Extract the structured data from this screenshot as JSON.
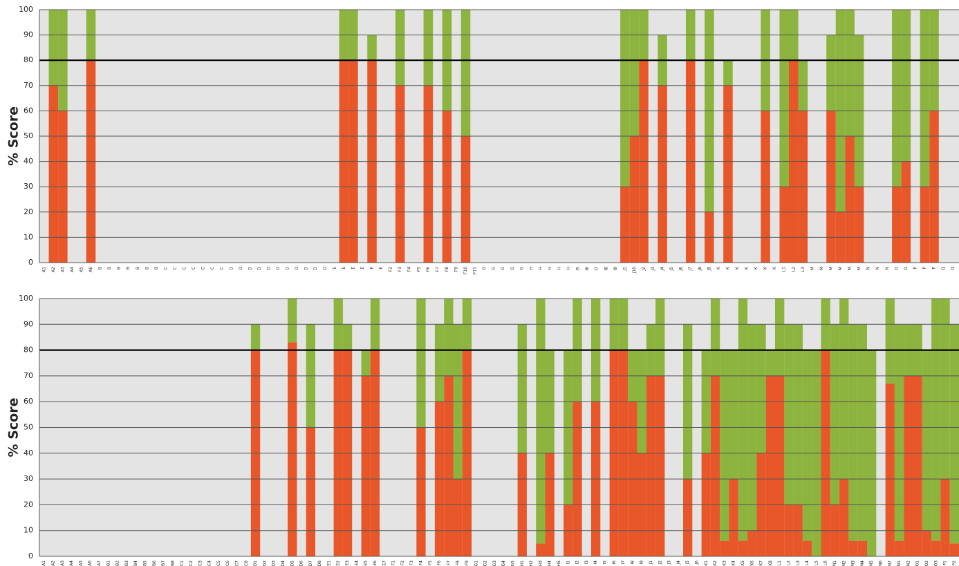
{
  "chart_data": [
    {
      "type": "bar",
      "stacked": true,
      "ylabel": "% Score",
      "ylim": [
        0,
        100
      ],
      "yticks": [
        0,
        10,
        20,
        30,
        40,
        50,
        60,
        70,
        80,
        90,
        100
      ],
      "grid": true,
      "hline": 80,
      "categories": [
        "A1",
        "A2",
        "A3",
        "A4",
        "A5",
        "A6",
        "B",
        "B",
        "B",
        "B",
        "B",
        "B",
        "B",
        "C",
        "C",
        "C",
        "C",
        "C",
        "C",
        "C",
        "D",
        "D",
        "D",
        "D",
        "D",
        "D",
        "D",
        "D",
        "D",
        "D",
        "D",
        "E",
        "E",
        "E",
        "E",
        "E",
        "E",
        "F2",
        "F3",
        "F4",
        "F5",
        "F6",
        "F7",
        "F8",
        "F9",
        "F10",
        "F11",
        "G",
        "G",
        "G",
        "G",
        "G",
        "H",
        "H",
        "H",
        "H",
        "H",
        "I5",
        "I6",
        "I7",
        "I8",
        "I9",
        "J1",
        "J10",
        "J2",
        "J3",
        "J4",
        "J5",
        "J6",
        "J7",
        "J8",
        "J9",
        "K",
        "K",
        "K",
        "K",
        "K",
        "K",
        "K",
        "L1",
        "L2",
        "L3",
        "M",
        "M",
        "M",
        "M",
        "M",
        "M",
        "N",
        "N",
        "N",
        "O",
        "O",
        "P",
        "P",
        "P",
        "Q",
        "Q"
      ],
      "series": [
        {
          "color": "#e8572a",
          "values": [
            null,
            70,
            60,
            null,
            null,
            80,
            null,
            null,
            null,
            null,
            null,
            null,
            null,
            null,
            null,
            null,
            null,
            null,
            null,
            null,
            null,
            null,
            null,
            null,
            null,
            null,
            null,
            null,
            null,
            null,
            null,
            null,
            80,
            80,
            null,
            80,
            null,
            null,
            70,
            null,
            null,
            70,
            null,
            60,
            null,
            50,
            null,
            null,
            null,
            null,
            null,
            null,
            null,
            null,
            null,
            null,
            null,
            null,
            null,
            null,
            null,
            null,
            30,
            50,
            80,
            null,
            70,
            null,
            null,
            80,
            null,
            20,
            null,
            70,
            null,
            null,
            null,
            60,
            null,
            30,
            80,
            60,
            null,
            null,
            60,
            20,
            50,
            30,
            null,
            null,
            null,
            30,
            40,
            null,
            30,
            60,
            null,
            null
          ]
        },
        {
          "color": "#8db43e",
          "values": [
            null,
            30,
            40,
            null,
            null,
            20,
            null,
            null,
            null,
            null,
            null,
            null,
            null,
            null,
            null,
            null,
            null,
            null,
            null,
            null,
            null,
            null,
            null,
            null,
            null,
            null,
            null,
            null,
            null,
            null,
            null,
            null,
            20,
            20,
            null,
            10,
            null,
            null,
            30,
            null,
            null,
            30,
            null,
            40,
            null,
            50,
            null,
            null,
            null,
            null,
            null,
            null,
            null,
            null,
            null,
            null,
            null,
            null,
            null,
            null,
            null,
            null,
            70,
            50,
            20,
            null,
            20,
            null,
            null,
            20,
            null,
            80,
            null,
            10,
            null,
            null,
            null,
            40,
            null,
            70,
            20,
            20,
            null,
            null,
            30,
            80,
            50,
            60,
            null,
            null,
            null,
            70,
            60,
            null,
            70,
            40,
            null,
            null
          ]
        }
      ]
    },
    {
      "type": "bar",
      "stacked": true,
      "ylabel": "% Score",
      "ylim": [
        0,
        100
      ],
      "yticks": [
        0,
        10,
        20,
        30,
        40,
        50,
        60,
        70,
        80,
        90,
        100
      ],
      "grid": true,
      "hline": 80,
      "categories": [
        "A1",
        "A2",
        "A3",
        "A4",
        "A5",
        "A6",
        "A7",
        "B1",
        "B2",
        "B3",
        "B4",
        "B5",
        "B6",
        "B7",
        "B8",
        "C1",
        "C2",
        "C3",
        "C4",
        "C5",
        "C6",
        "C7",
        "C8",
        "D1",
        "D2",
        "D3",
        "D4",
        "D5",
        "D6",
        "D7",
        "D8",
        "E1",
        "E2",
        "E3",
        "E4",
        "E5",
        "E6",
        "E7",
        "F1",
        "F2",
        "F3",
        "F4",
        "F5",
        "F6",
        "F7",
        "F8",
        "F9",
        "G1",
        "G2",
        "G3",
        "G4",
        "G5",
        "H1",
        "H2",
        "H3",
        "H4",
        "H5",
        "I1",
        "I2",
        "I3",
        "I4",
        "I5",
        "I6",
        "I7",
        "I8",
        "I9",
        "J1",
        "J2",
        "J3",
        "J4",
        "J5",
        "J6",
        "K1",
        "K2",
        "K3",
        "K4",
        "K5",
        "K6",
        "K7",
        "K8",
        "L1",
        "L2",
        "L3",
        "L4",
        "L5",
        "L6",
        "M1",
        "M2",
        "M3",
        "M4",
        "M5",
        "M6",
        "M7",
        "N1",
        "N2",
        "O1",
        "O2",
        "O3",
        "P1",
        "P2"
      ],
      "series": [
        {
          "color": "#e8572a",
          "values": [
            null,
            null,
            null,
            null,
            null,
            null,
            null,
            null,
            null,
            null,
            null,
            null,
            null,
            null,
            null,
            null,
            null,
            null,
            null,
            null,
            null,
            null,
            null,
            80,
            null,
            null,
            null,
            83,
            null,
            50,
            null,
            null,
            80,
            80,
            null,
            70,
            80,
            null,
            null,
            null,
            null,
            50,
            null,
            60,
            70,
            30,
            80,
            null,
            null,
            null,
            null,
            null,
            40,
            null,
            5,
            40,
            null,
            20,
            60,
            null,
            60,
            null,
            80,
            80,
            60,
            40,
            70,
            70,
            null,
            null,
            30,
            null,
            40,
            70,
            6,
            30,
            6,
            10,
            40,
            70,
            70,
            20,
            20,
            6,
            0,
            80,
            20,
            30,
            6,
            6,
            0,
            null,
            67,
            6,
            70,
            70,
            10,
            6,
            30,
            5
          ]
        },
        {
          "color": "#8db43e",
          "values": [
            null,
            null,
            null,
            null,
            null,
            null,
            null,
            null,
            null,
            null,
            null,
            null,
            null,
            null,
            null,
            null,
            null,
            null,
            null,
            null,
            null,
            null,
            null,
            10,
            null,
            null,
            null,
            17,
            null,
            40,
            null,
            null,
            20,
            10,
            null,
            10,
            20,
            null,
            null,
            null,
            null,
            50,
            null,
            30,
            30,
            60,
            20,
            null,
            null,
            null,
            null,
            null,
            50,
            null,
            95,
            40,
            null,
            60,
            40,
            null,
            40,
            null,
            20,
            20,
            20,
            40,
            20,
            30,
            null,
            null,
            60,
            null,
            40,
            30,
            74,
            50,
            94,
            80,
            50,
            10,
            30,
            70,
            70,
            74,
            80,
            20,
            70,
            70,
            84,
            84,
            80,
            null,
            33,
            84,
            20,
            20,
            70,
            94,
            70,
            85
          ]
        }
      ]
    }
  ]
}
